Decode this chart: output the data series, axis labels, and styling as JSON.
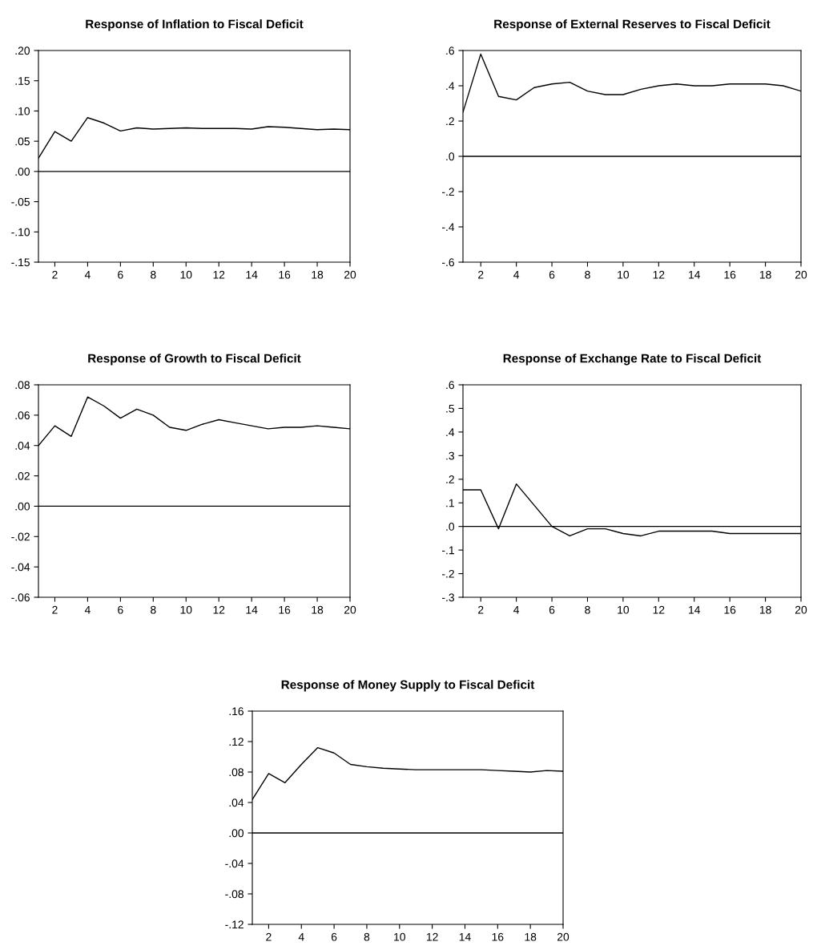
{
  "chart_data": [
    {
      "type": "line",
      "title": "Response of Inflation to Fiscal Deficit",
      "x": [
        1,
        2,
        3,
        4,
        5,
        6,
        7,
        8,
        9,
        10,
        11,
        12,
        13,
        14,
        15,
        16,
        17,
        18,
        19,
        20
      ],
      "series": [
        {
          "color": "#000000",
          "values": [
            0.022,
            0.066,
            0.05,
            0.089,
            0.08,
            0.067,
            0.072,
            0.07,
            0.071,
            0.072,
            0.071,
            0.071,
            0.071,
            0.07,
            0.074,
            0.073,
            0.071,
            0.069,
            0.07,
            0.069
          ]
        }
      ],
      "xlim": [
        1,
        20
      ],
      "xticks": [
        2,
        4,
        6,
        8,
        10,
        12,
        14,
        16,
        18,
        20
      ],
      "ylim": [
        -0.15,
        0.2
      ],
      "yticks": [
        {
          "value": -0.15,
          "label": "-.15"
        },
        {
          "value": -0.1,
          "label": "-.10"
        },
        {
          "value": -0.05,
          "label": "-.05"
        },
        {
          "value": 0.0,
          "label": ".00"
        },
        {
          "value": 0.05,
          "label": ".05"
        },
        {
          "value": 0.1,
          "label": ".10"
        },
        {
          "value": 0.15,
          "label": ".15"
        },
        {
          "value": 0.2,
          "label": ".20"
        }
      ],
      "ref_lines": [
        {
          "axis": "y",
          "value": 0,
          "color": "#000000"
        }
      ]
    },
    {
      "type": "line",
      "title": "Response of External Reserves to Fiscal Deficit",
      "x": [
        1,
        2,
        3,
        4,
        5,
        6,
        7,
        8,
        9,
        10,
        11,
        12,
        13,
        14,
        15,
        16,
        17,
        18,
        19,
        20
      ],
      "series": [
        {
          "color": "#000000",
          "values": [
            0.25,
            0.58,
            0.34,
            0.32,
            0.39,
            0.41,
            0.42,
            0.37,
            0.35,
            0.35,
            0.38,
            0.4,
            0.41,
            0.4,
            0.4,
            0.41,
            0.41,
            0.41,
            0.4,
            0.37
          ]
        }
      ],
      "xlim": [
        1,
        20
      ],
      "xticks": [
        2,
        4,
        6,
        8,
        10,
        12,
        14,
        16,
        18,
        20
      ],
      "ylim": [
        -0.6,
        0.6
      ],
      "yticks": [
        {
          "value": -0.6,
          "label": "-.6"
        },
        {
          "value": -0.4,
          "label": "-.4"
        },
        {
          "value": -0.2,
          "label": "-.2"
        },
        {
          "value": 0.0,
          "label": ".0"
        },
        {
          "value": 0.2,
          "label": ".2"
        },
        {
          "value": 0.4,
          "label": ".4"
        },
        {
          "value": 0.6,
          "label": ".6"
        }
      ],
      "ref_lines": [
        {
          "axis": "y",
          "value": 0,
          "color": "#000000"
        }
      ]
    },
    {
      "type": "line",
      "title": "Response of Growth to Fiscal Deficit",
      "x": [
        1,
        2,
        3,
        4,
        5,
        6,
        7,
        8,
        9,
        10,
        11,
        12,
        13,
        14,
        15,
        16,
        17,
        18,
        19,
        20
      ],
      "series": [
        {
          "color": "#000000",
          "values": [
            0.04,
            0.053,
            0.046,
            0.072,
            0.066,
            0.058,
            0.064,
            0.06,
            0.052,
            0.05,
            0.054,
            0.057,
            0.055,
            0.053,
            0.051,
            0.052,
            0.052,
            0.053,
            0.052,
            0.051
          ]
        }
      ],
      "xlim": [
        1,
        20
      ],
      "xticks": [
        2,
        4,
        6,
        8,
        10,
        12,
        14,
        16,
        18,
        20
      ],
      "ylim": [
        -0.06,
        0.08
      ],
      "yticks": [
        {
          "value": -0.06,
          "label": "-.06"
        },
        {
          "value": -0.04,
          "label": "-.04"
        },
        {
          "value": -0.02,
          "label": "-.02"
        },
        {
          "value": 0.0,
          "label": ".00"
        },
        {
          "value": 0.02,
          "label": ".02"
        },
        {
          "value": 0.04,
          "label": ".04"
        },
        {
          "value": 0.06,
          "label": ".06"
        },
        {
          "value": 0.08,
          "label": ".08"
        }
      ],
      "ref_lines": [
        {
          "axis": "y",
          "value": 0,
          "color": "#000000"
        }
      ]
    },
    {
      "type": "line",
      "title": "Response of Exchange Rate to Fiscal Deficit",
      "x": [
        1,
        2,
        3,
        4,
        5,
        6,
        7,
        8,
        9,
        10,
        11,
        12,
        13,
        14,
        15,
        16,
        17,
        18,
        19,
        20
      ],
      "series": [
        {
          "color": "#000000",
          "values": [
            0.155,
            0.155,
            -0.01,
            0.18,
            0.09,
            0.0,
            -0.04,
            -0.01,
            -0.01,
            -0.03,
            -0.04,
            -0.02,
            -0.02,
            -0.02,
            -0.02,
            -0.03,
            -0.03,
            -0.03,
            -0.03,
            -0.03
          ]
        }
      ],
      "xlim": [
        1,
        20
      ],
      "xticks": [
        2,
        4,
        6,
        8,
        10,
        12,
        14,
        16,
        18,
        20
      ],
      "ylim": [
        -0.3,
        0.6
      ],
      "yticks": [
        {
          "value": -0.3,
          "label": "-.3"
        },
        {
          "value": -0.2,
          "label": "-.2"
        },
        {
          "value": -0.1,
          "label": "-.1"
        },
        {
          "value": 0.0,
          "label": ".0"
        },
        {
          "value": 0.1,
          "label": ".1"
        },
        {
          "value": 0.2,
          "label": ".2"
        },
        {
          "value": 0.3,
          "label": ".3"
        },
        {
          "value": 0.4,
          "label": ".4"
        },
        {
          "value": 0.5,
          "label": ".5"
        },
        {
          "value": 0.6,
          "label": ".6"
        }
      ],
      "ref_lines": [
        {
          "axis": "y",
          "value": 0,
          "color": "#000000"
        }
      ]
    },
    {
      "type": "line",
      "title": "Response of Money Supply to Fiscal Deficit",
      "x": [
        1,
        2,
        3,
        4,
        5,
        6,
        7,
        8,
        9,
        10,
        11,
        12,
        13,
        14,
        15,
        16,
        17,
        18,
        19,
        20
      ],
      "series": [
        {
          "color": "#000000",
          "values": [
            0.044,
            0.078,
            0.066,
            0.09,
            0.112,
            0.105,
            0.09,
            0.087,
            0.085,
            0.084,
            0.083,
            0.083,
            0.083,
            0.083,
            0.083,
            0.082,
            0.081,
            0.08,
            0.082,
            0.081
          ]
        }
      ],
      "xlim": [
        1,
        20
      ],
      "xticks": [
        2,
        4,
        6,
        8,
        10,
        12,
        14,
        16,
        18,
        20
      ],
      "ylim": [
        -0.12,
        0.16
      ],
      "yticks": [
        {
          "value": -0.12,
          "label": "-.12"
        },
        {
          "value": -0.08,
          "label": "-.08"
        },
        {
          "value": -0.04,
          "label": "-.04"
        },
        {
          "value": 0.0,
          "label": ".00"
        },
        {
          "value": 0.04,
          "label": ".04"
        },
        {
          "value": 0.08,
          "label": ".08"
        },
        {
          "value": 0.12,
          "label": ".12"
        },
        {
          "value": 0.16,
          "label": ".16"
        }
      ],
      "ref_lines": [
        {
          "axis": "y",
          "value": 0,
          "color": "#000000"
        }
      ]
    }
  ]
}
